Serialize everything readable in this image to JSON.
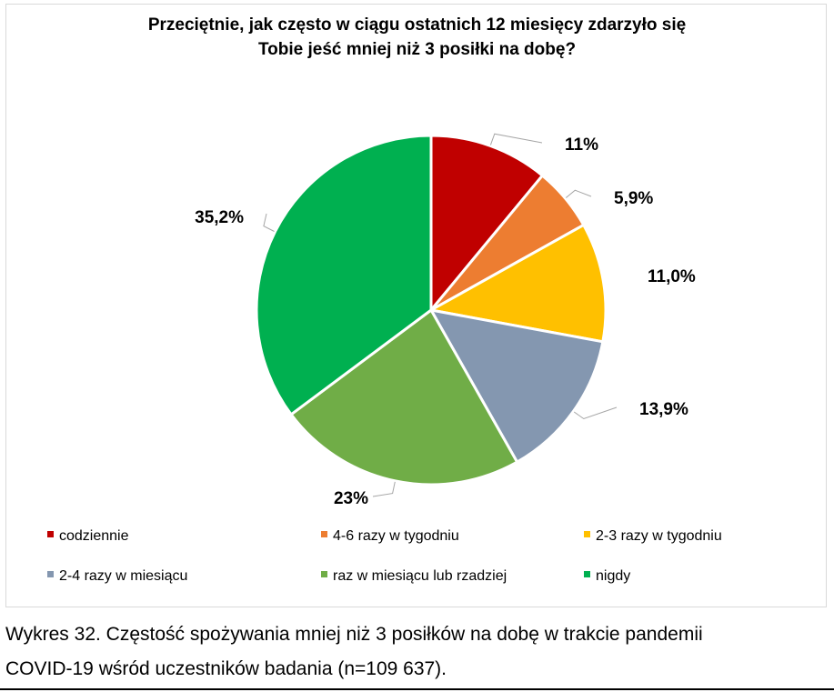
{
  "chart_data": {
    "type": "pie",
    "title_lines": [
      "Przeciętnie, jak często w ciągu ostatnich 12 miesięcy zdarzyło się",
      "Tobie jeść mniej niż 3 posiłki na dobę?"
    ],
    "slices": [
      {
        "name": "codziennie",
        "value": 11.0,
        "label": "11%",
        "color": "#C00000"
      },
      {
        "name": "4-6 razy w tygodniu",
        "value": 5.9,
        "label": "5,9%",
        "color": "#ED7D31"
      },
      {
        "name": "2-3 razy w tygodniu",
        "value": 11.0,
        "label": "11,0%",
        "color": "#FFC000"
      },
      {
        "name": "2-4 razy w miesiącu",
        "value": 13.9,
        "label": "13,9%",
        "color": "#8497B0"
      },
      {
        "name": "raz w miesiącu lub rzadziej",
        "value": 23.0,
        "label": "23%",
        "color": "#70AD47"
      },
      {
        "name": "nigdy",
        "value": 35.2,
        "label": "35,2%",
        "color": "#00B050"
      }
    ],
    "legend_position": "bottom"
  },
  "caption_lines": [
    "Wykres 32. Częstość spożywania mniej niż 3 posiłków na dobę w trakcie pandemii",
    "COVID-19 wśród uczestników badania (n=109 637)."
  ]
}
